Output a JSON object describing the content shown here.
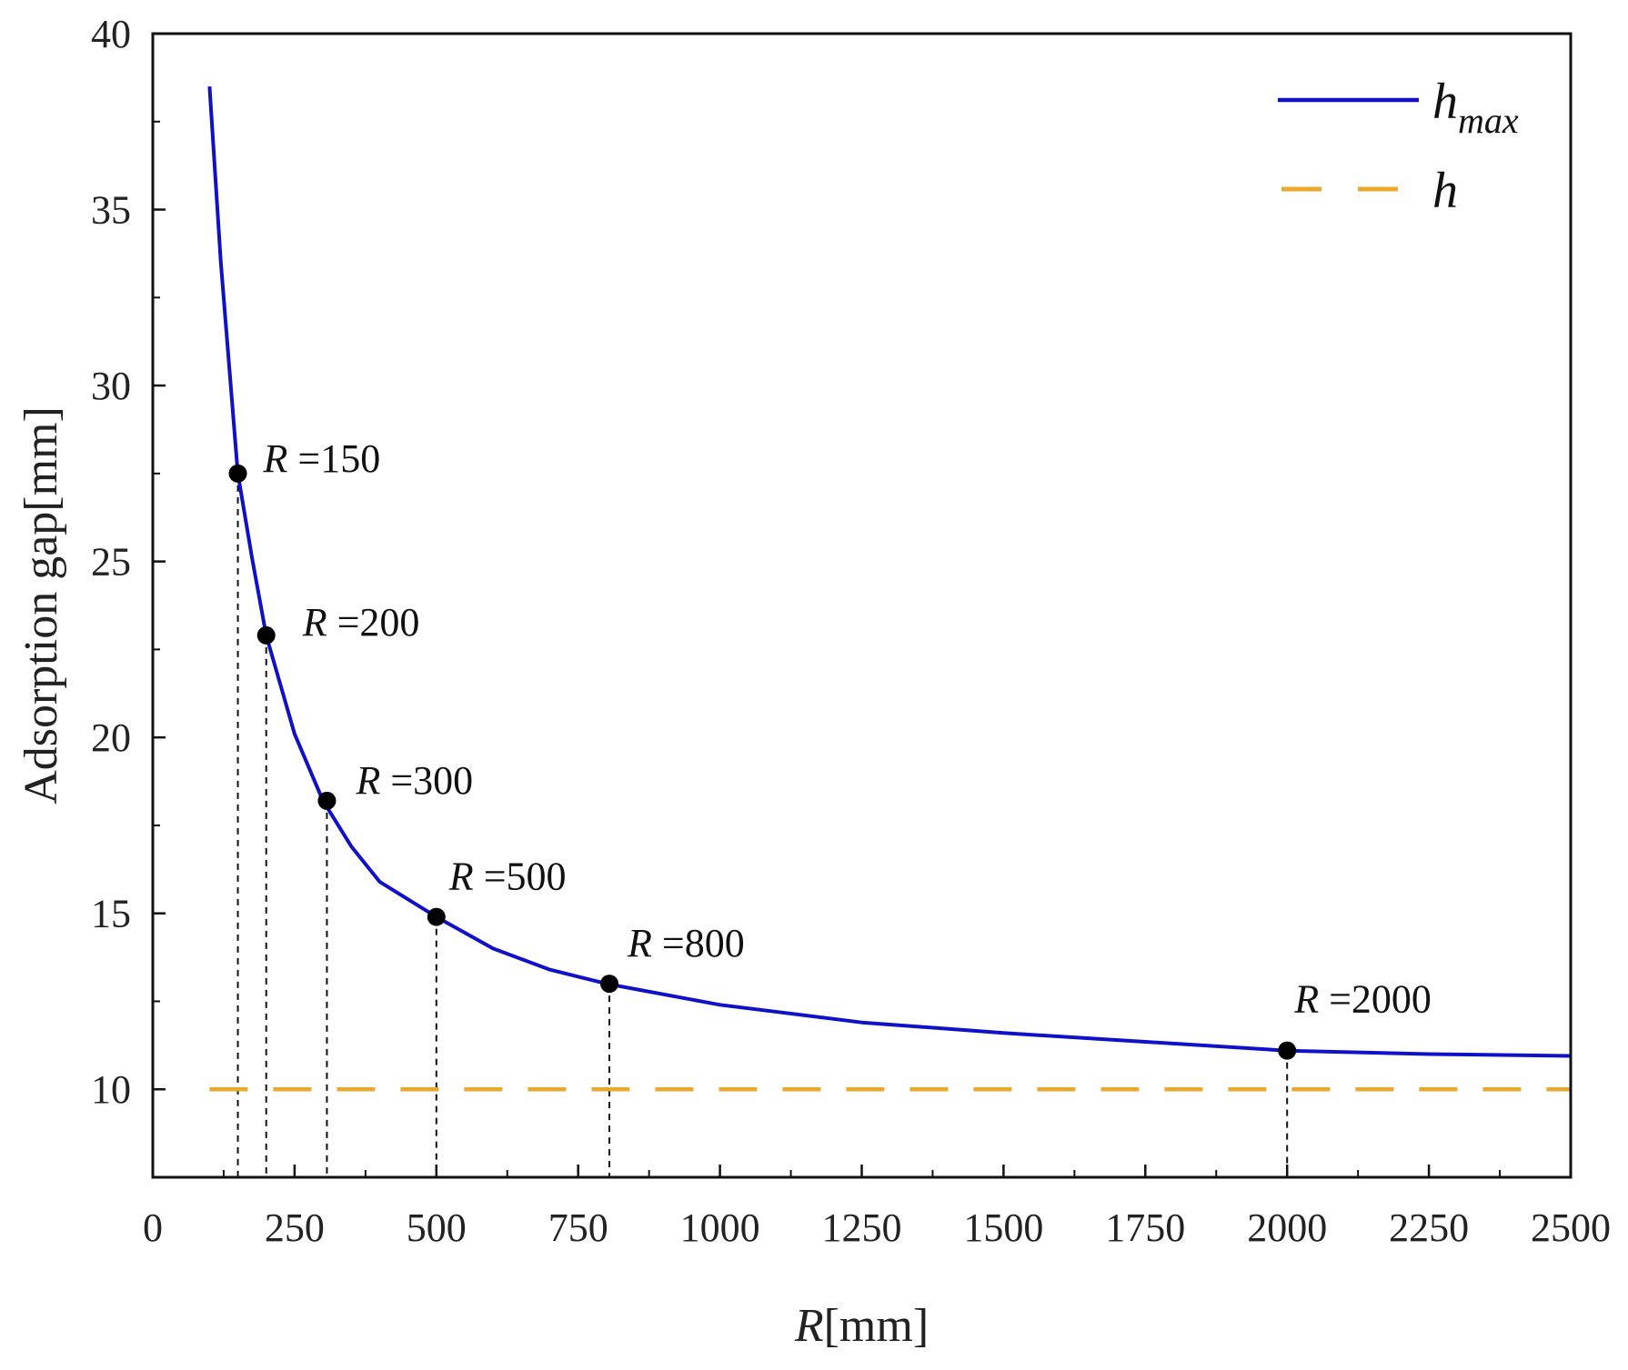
{
  "chart_data": {
    "type": "line",
    "title": "",
    "xlabel": "R[mm]",
    "xlabel_var": "R",
    "xlabel_unit": "[mm]",
    "ylabel": "Adsorption gap[mm]",
    "xlim": [
      0,
      2500
    ],
    "ylim": [
      7.5,
      40
    ],
    "x_ticks": [
      0,
      250,
      500,
      750,
      1000,
      1250,
      1500,
      1750,
      2000,
      2250,
      2500
    ],
    "y_ticks": [
      10,
      15,
      20,
      25,
      30,
      35,
      40
    ],
    "legend_position": "top-right",
    "series": [
      {
        "name": "h_max",
        "label_base": "h",
        "label_sub": "max",
        "style": "solid",
        "color": "#1010c8",
        "x": [
          100,
          120,
          150,
          175,
          200,
          250,
          300,
          350,
          400,
          500,
          600,
          700,
          800,
          1000,
          1250,
          1500,
          1750,
          2000,
          2250,
          2500
        ],
        "y": [
          38.5,
          33.5,
          27.5,
          25.1,
          22.9,
          20.1,
          18.2,
          16.9,
          15.9,
          14.9,
          14.0,
          13.4,
          13.0,
          12.4,
          11.9,
          11.6,
          11.35,
          11.1,
          11.0,
          10.95
        ]
      },
      {
        "name": "h",
        "label_base": "h",
        "label_sub": "",
        "style": "dashed",
        "color": "#e8a92e",
        "x": [
          100,
          2500
        ],
        "y": [
          10,
          10
        ]
      }
    ],
    "markers": [
      {
        "x": 150,
        "y": 27.5,
        "label_var": "R",
        "label_value": "=150"
      },
      {
        "x": 200,
        "y": 22.9,
        "label_var": "R",
        "label_value": "=200"
      },
      {
        "x": 307,
        "y": 18.2,
        "label_var": "R",
        "label_value": "=300"
      },
      {
        "x": 500,
        "y": 14.9,
        "label_var": "R",
        "label_value": "=500"
      },
      {
        "x": 805,
        "y": 13.0,
        "label_var": "R",
        "label_value": "=800"
      },
      {
        "x": 2000,
        "y": 11.1,
        "label_var": "R",
        "label_value": "=2000"
      }
    ]
  }
}
